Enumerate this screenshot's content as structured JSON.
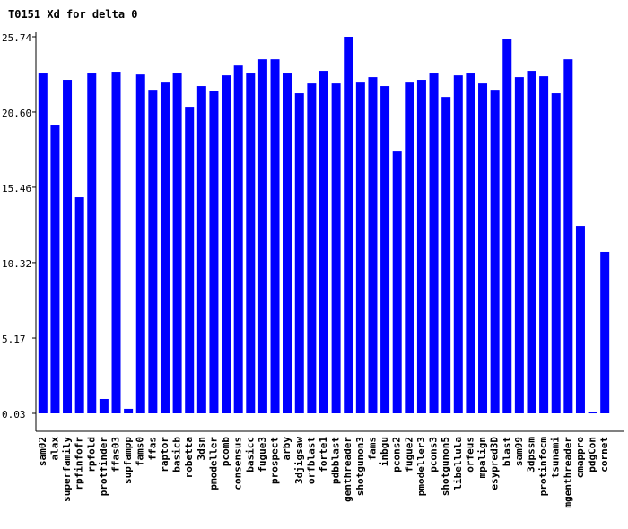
{
  "chart_data": {
    "type": "bar",
    "title": "T0151 Xd for delta 0",
    "categories": [
      "sam02",
      "alax",
      "superfamily",
      "rpfinfofr",
      "rpfold",
      "protfinder",
      "ffas03",
      "supfampp",
      "fams0",
      "ffas",
      "raptor",
      "basicb",
      "robetta",
      "3dsn",
      "pmodeller",
      "pcomb",
      "consensus",
      "basicc",
      "fugue3",
      "prospect",
      "arby",
      "3djigsaw",
      "orfblast",
      "forte1",
      "pdbblast",
      "genthreader",
      "shotgunon3",
      "fams",
      "inbgu",
      "pcons2",
      "fugue2",
      "pmodeller3",
      "pcons3",
      "shotgunon5",
      "libellula",
      "orfeus",
      "mpalign",
      "esypred3D",
      "blast",
      "sam99",
      "3dpssm",
      "protinfocm",
      "tsunami",
      "mgenthreader",
      "cmappro",
      "pdgCon",
      "cornet"
    ],
    "values": [
      23.29,
      19.74,
      22.8,
      14.78,
      23.29,
      1.01,
      23.35,
      0.34,
      23.16,
      22.12,
      22.61,
      23.29,
      20.96,
      22.37,
      22.06,
      23.1,
      23.77,
      23.29,
      24.2,
      24.2,
      23.29,
      21.88,
      22.55,
      23.41,
      22.55,
      25.74,
      22.61,
      22.98,
      22.37,
      17.96,
      22.61,
      22.8,
      23.29,
      21.63,
      23.1,
      23.29,
      22.55,
      22.12,
      25.61,
      22.98,
      23.41,
      23.04,
      21.88,
      24.2,
      12.82,
      0.09,
      11.05
    ],
    "color": "#0000ff",
    "ylim": [
      0.03,
      25.74
    ],
    "yticks": [
      0.03,
      5.17,
      10.32,
      15.46,
      {
        "value": 20.6,
        "label": "20.60"
      },
      25.74
    ]
  }
}
